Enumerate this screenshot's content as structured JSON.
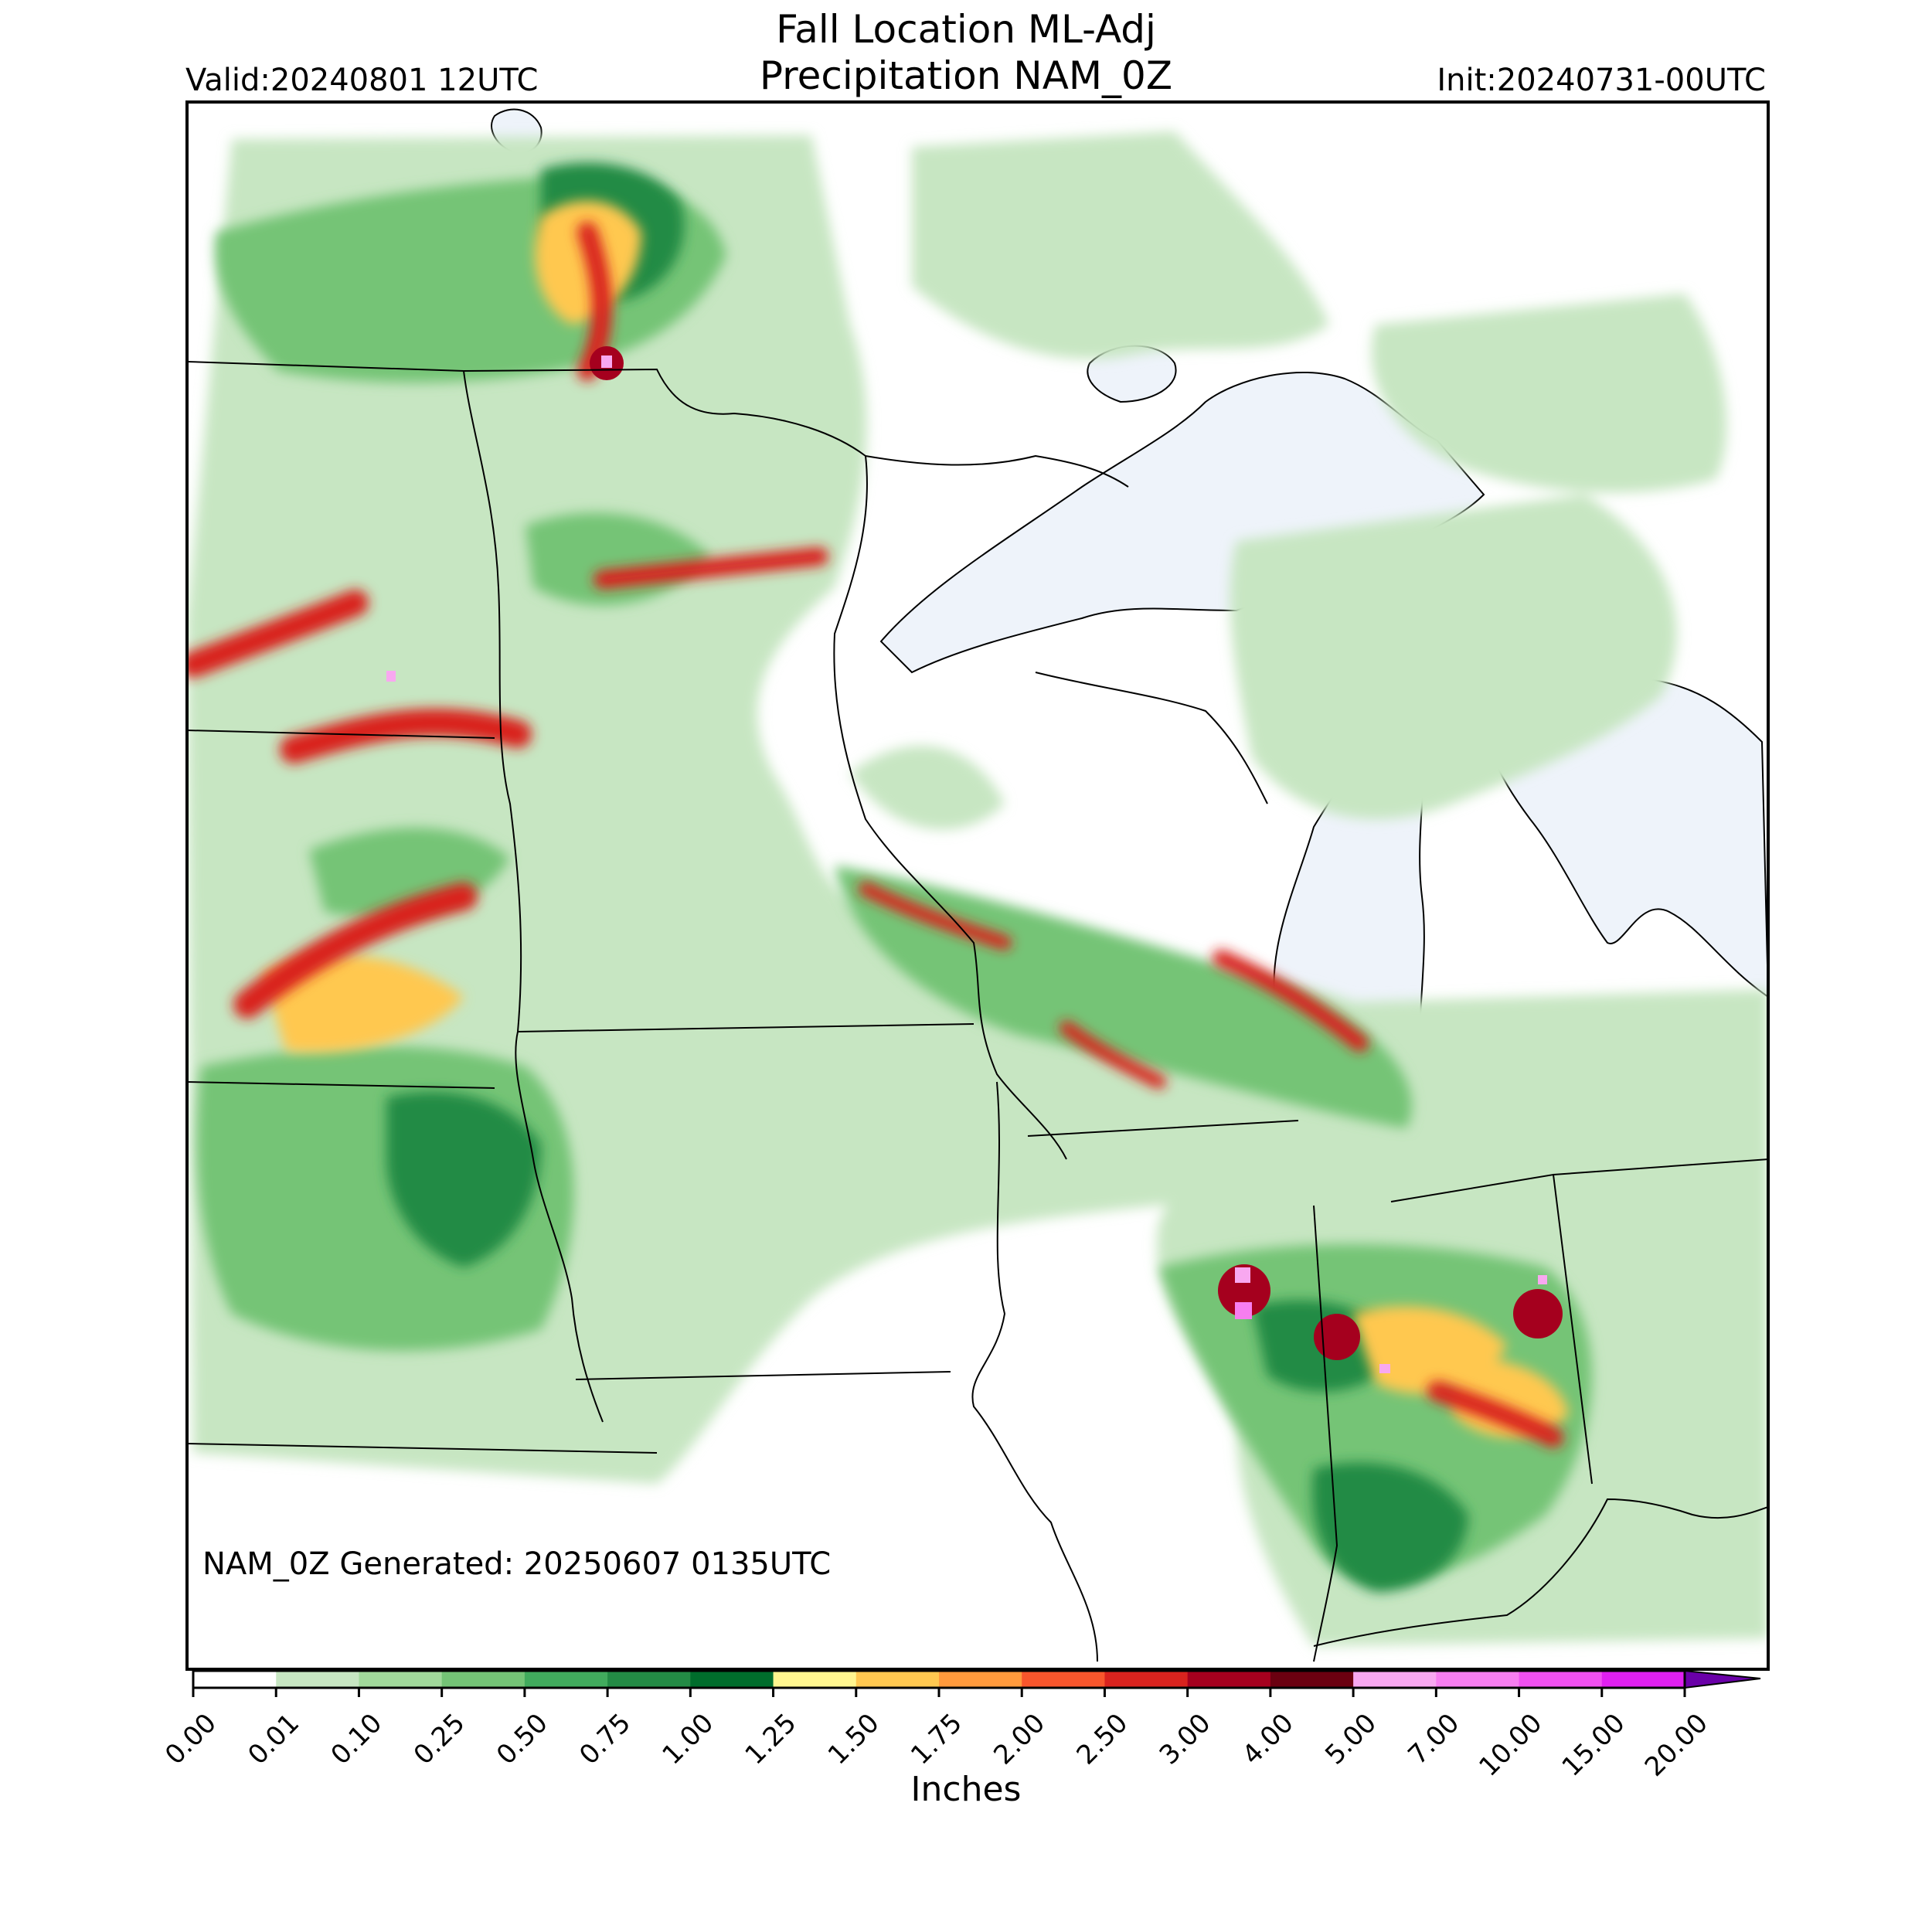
{
  "title_line1": "Fall Location ML-Adj",
  "title_line2": "Precipitation NAM_0Z",
  "valid_text": "Valid:20240801 12UTC",
  "init_text": "Init:20240731-00UTC",
  "generated_text": "NAM_0Z Generated: 20250607 0135UTC",
  "colorbar": {
    "label": "Inches",
    "ticks": [
      "0.00",
      "0.01",
      "0.10",
      "0.25",
      "0.50",
      "0.75",
      "1.00",
      "1.25",
      "1.50",
      "1.75",
      "2.00",
      "2.50",
      "3.00",
      "4.00",
      "5.00",
      "7.00",
      "10.00",
      "15.00",
      "20.00"
    ],
    "colors": [
      "#ffffff",
      "#c7e6c2",
      "#a1d99b",
      "#74c476",
      "#41ab5d",
      "#238b45",
      "#006d2c",
      "#fff68f",
      "#ffc850",
      "#ff9a3c",
      "#f8562c",
      "#d9231e",
      "#a5001e",
      "#6b0010",
      "#f8a8f0",
      "#f77ef0",
      "#f050f0",
      "#e020f0",
      "#b800e0",
      "#8a00c8"
    ],
    "extend_color": "#6a00a8"
  },
  "map_colors": {
    "water": "#eef3fa",
    "light_precip": "#c7e6c2",
    "heavy_core": "#d9231e"
  }
}
